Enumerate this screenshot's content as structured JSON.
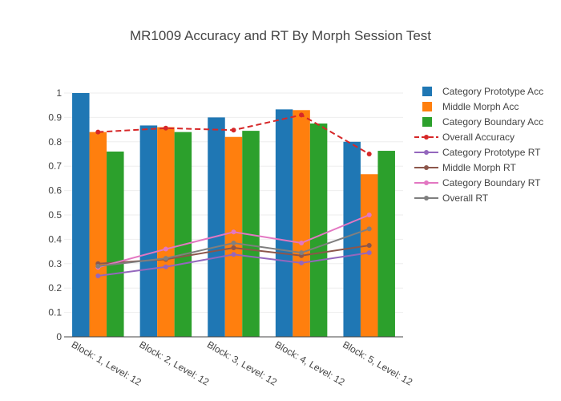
{
  "chart_data": {
    "type": "bar",
    "title": "MR1009 Accuracy and RT By Morph Session Test",
    "categories": [
      "Block: 1, Level: 12",
      "Block: 2, Level: 12",
      "Block: 3, Level: 12",
      "Block: 4, Level: 12",
      "Block: 5, Level: 12"
    ],
    "ylim": [
      0,
      1
    ],
    "yticks": [
      "0",
      "0.1",
      "0.2",
      "0.3",
      "0.4",
      "0.5",
      "0.6",
      "0.7",
      "0.8",
      "0.9",
      "1"
    ],
    "grid": true,
    "legend_position": "right",
    "bar_series": [
      {
        "name": "Category Prototype Acc",
        "color": "#1f77b4",
        "values": [
          1.0,
          0.867,
          0.9,
          0.933,
          0.8
        ]
      },
      {
        "name": "Middle Morph Acc",
        "color": "#ff7f0e",
        "values": [
          0.84,
          0.86,
          0.82,
          0.93,
          0.667
        ]
      },
      {
        "name": "Category Boundary Acc",
        "color": "#2ca02c",
        "values": [
          0.76,
          0.84,
          0.845,
          0.875,
          0.763
        ]
      }
    ],
    "line_series": [
      {
        "name": "Overall Accuracy",
        "color": "#d62728",
        "dash": true,
        "values": [
          0.84,
          0.856,
          0.848,
          0.91,
          0.75
        ]
      },
      {
        "name": "Category Prototype RT",
        "color": "#9467bd",
        "dash": false,
        "values": [
          0.25,
          0.287,
          0.338,
          0.303,
          0.345
        ]
      },
      {
        "name": "Middle Morph RT",
        "color": "#8c564b",
        "dash": false,
        "values": [
          0.3,
          0.318,
          0.365,
          0.333,
          0.375
        ]
      },
      {
        "name": "Category Boundary RT",
        "color": "#e377c2",
        "dash": false,
        "values": [
          0.285,
          0.36,
          0.43,
          0.385,
          0.5
        ]
      },
      {
        "name": "Overall RT",
        "color": "#7f7f7f",
        "dash": false,
        "values": [
          0.29,
          0.322,
          0.385,
          0.345,
          0.443
        ]
      }
    ]
  }
}
